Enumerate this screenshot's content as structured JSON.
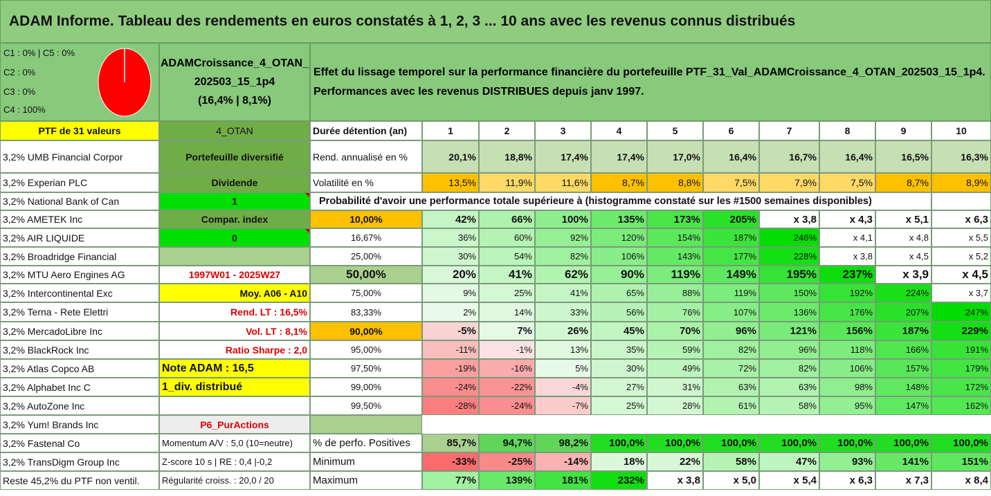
{
  "title": "ADAM Informe. Tableau des rendements en euros constatés à 1, 2, 3 ... 10 ans avec les revenus connus distribués",
  "allocation": [
    "C1 : 0% | C5 : 0%",
    "C2 : 0%",
    "C3 : 0%",
    "C4 : 100%"
  ],
  "pie": {
    "slices": [
      {
        "pct": 100,
        "color": "#ff0000"
      }
    ]
  },
  "portfolio": {
    "name_line1": "ADAMCroissance_4_OTAN_",
    "name_line2": "202503_15_1p4",
    "name_line3": "(16,4% | 8,1%)"
  },
  "effect_text": {
    "line1": "Effet du lissage temporel sur la performance financière du portefeuille PTF_31_Val_ADAMCroissance_4_OTAN_202503_15_1p4.",
    "line2": "Performances avec les revenus DISTRIBUES depuis janv 1997."
  },
  "header_row": {
    "ptf_count": "PTF de 31 valeurs",
    "code": "4_OTAN",
    "duration_label": "Durée détention (an)",
    "years": [
      "1",
      "2",
      "3",
      "4",
      "5",
      "6",
      "7",
      "8",
      "9",
      "10"
    ]
  },
  "holdings": [
    "3,2% UMB Financial Corpor",
    "3,2% Experian PLC",
    "3,2% National Bank of Can",
    "3,2% AMETEK Inc",
    "3,2% AIR LIQUIDE",
    "3,2% Broadridge Financial",
    "3,2% MTU Aero Engines AG",
    "3,2% Intercontinental Exc",
    "3,2% Terna - Rete Elettri",
    "3,2% MercadoLibre Inc",
    "3,2% BlackRock Inc",
    "3,2% Atlas Copco AB",
    "3,2% Alphabet Inc C",
    "3,2% AutoZone Inc",
    "3,2% Yum! Brands Inc",
    "3,2% Fastenal Co",
    "3,2% TransDigm Group Inc",
    "Reste 45,2% du PTF non ventil."
  ],
  "side_info": [
    "Portefeuille diversifié",
    "Dividende",
    "1",
    "Compar. index",
    "0",
    "",
    "1997W01 - 2025W27",
    "Moy. A06 - A10",
    "Rend. LT : 16,5%",
    "Vol. LT : 8,1%",
    "Ratio Sharpe : 2,0",
    "Note ADAM : 16,5",
    "1_div. distribué",
    "",
    "P6_PurActions",
    "Momentum A/V : 5,0 (10=neutre)",
    "Z-score 10 s | RE : 0,4 |-0,2",
    "Régularité croiss. : 20,0 / 20"
  ],
  "rend_row": {
    "label": "Rend. annualisé en %",
    "values": [
      "20,1%",
      "18,8%",
      "17,4%",
      "17,4%",
      "17,0%",
      "16,4%",
      "16,7%",
      "16,4%",
      "16,5%",
      "16,3%"
    ]
  },
  "vol_row": {
    "label": "Volatilité en %",
    "values": [
      "13,5%",
      "11,9%",
      "11,6%",
      "8,7%",
      "8,8%",
      "7,5%",
      "7,9%",
      "7,5%",
      "8,7%",
      "8,9%"
    ]
  },
  "proba_header": "Probabilité d'avoir une performance totale supérieure à (histogramme constaté sur les #1500 semaines disponibles)",
  "proba_rows": [
    {
      "q": "10,00%",
      "vals": [
        "42%",
        "66%",
        "100%",
        "135%",
        "173%",
        "205%",
        "x 3,8",
        "x 4,3",
        "x 5,1",
        "x 6,3"
      ]
    },
    {
      "q": "16,67%",
      "vals": [
        "36%",
        "60%",
        "92%",
        "120%",
        "154%",
        "187%",
        "246%",
        "x 4,1",
        "x 4,8",
        "x 5,5"
      ]
    },
    {
      "q": "25,00%",
      "vals": [
        "30%",
        "54%",
        "82%",
        "106%",
        "143%",
        "177%",
        "228%",
        "x 3,8",
        "x 4,5",
        "x 5,2"
      ]
    },
    {
      "q": "50,00%",
      "vals": [
        "20%",
        "41%",
        "62%",
        "90%",
        "119%",
        "149%",
        "195%",
        "237%",
        "x 3,9",
        "x 4,5"
      ]
    },
    {
      "q": "75,00%",
      "vals": [
        "9%",
        "25%",
        "41%",
        "65%",
        "88%",
        "119%",
        "150%",
        "192%",
        "224%",
        "x 3,7"
      ]
    },
    {
      "q": "83,33%",
      "vals": [
        "2%",
        "14%",
        "33%",
        "56%",
        "76%",
        "107%",
        "136%",
        "176%",
        "207%",
        "247%"
      ]
    },
    {
      "q": "90,00%",
      "vals": [
        "-5%",
        "7%",
        "26%",
        "45%",
        "70%",
        "96%",
        "121%",
        "156%",
        "187%",
        "229%"
      ]
    },
    {
      "q": "95,00%",
      "vals": [
        "-11%",
        "-1%",
        "13%",
        "35%",
        "59%",
        "82%",
        "96%",
        "118%",
        "166%",
        "191%"
      ]
    },
    {
      "q": "97,50%",
      "vals": [
        "-19%",
        "-16%",
        "5%",
        "30%",
        "49%",
        "72%",
        "82%",
        "106%",
        "157%",
        "179%"
      ]
    },
    {
      "q": "99,00%",
      "vals": [
        "-24%",
        "-22%",
        "-4%",
        "27%",
        "31%",
        "63%",
        "63%",
        "98%",
        "148%",
        "172%"
      ]
    },
    {
      "q": "99,50%",
      "vals": [
        "-28%",
        "-24%",
        "-7%",
        "25%",
        "28%",
        "61%",
        "58%",
        "95%",
        "147%",
        "162%"
      ]
    }
  ],
  "stats_rows": [
    {
      "label": "% de perfo. Positives",
      "vals": [
        "85,7%",
        "94,7%",
        "98,2%",
        "100,0%",
        "100,0%",
        "100,0%",
        "100,0%",
        "100,0%",
        "100,0%",
        "100,0%"
      ]
    },
    {
      "label": "Minimum",
      "vals": [
        "-33%",
        "-25%",
        "-14%",
        "18%",
        "22%",
        "58%",
        "47%",
        "93%",
        "141%",
        "151%"
      ]
    },
    {
      "label": "Maximum",
      "vals": [
        "77%",
        "139%",
        "181%",
        "232%",
        "x 3,8",
        "x 5,0",
        "x 5,4",
        "x 6,3",
        "x 7,3",
        "x 8,4"
      ]
    }
  ],
  "colors": {
    "title_bg": "#8fcc7f",
    "green_box": "#88c97c",
    "yellow": "#ffff00",
    "orange": "#ffc000",
    "bright_green": "#00e000",
    "light_green": "#c6e0b4",
    "header_green": "#70ad47",
    "pie_red": "#ff0000"
  }
}
